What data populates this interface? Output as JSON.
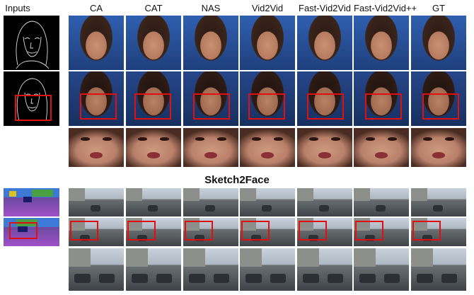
{
  "inputs_label": "Inputs",
  "columns": [
    "CA",
    "CAT",
    "NAS",
    "Vid2Vid",
    "Fast-Vid2Vid",
    "Fast-Vid2Vid++",
    "GT"
  ],
  "section_title": "Sketch2Face"
}
